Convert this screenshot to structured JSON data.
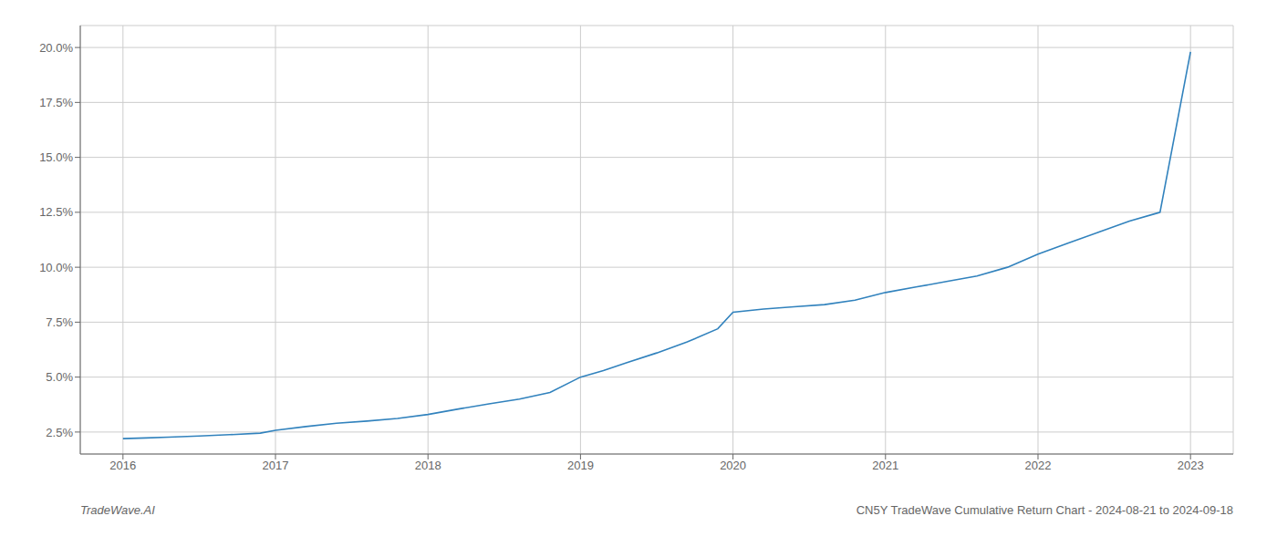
{
  "chart_data": {
    "type": "line",
    "x": [
      2016.0,
      2016.15,
      2016.3,
      2016.5,
      2016.7,
      2016.9,
      2017.0,
      2017.2,
      2017.4,
      2017.6,
      2017.8,
      2018.0,
      2018.2,
      2018.4,
      2018.6,
      2018.8,
      2019.0,
      2019.15,
      2019.3,
      2019.5,
      2019.7,
      2019.9,
      2020.0,
      2020.2,
      2020.4,
      2020.6,
      2020.8,
      2021.0,
      2021.2,
      2021.4,
      2021.6,
      2021.8,
      2022.0,
      2022.2,
      2022.4,
      2022.6,
      2022.8,
      2023.0
    ],
    "values": [
      2.2,
      2.23,
      2.27,
      2.32,
      2.38,
      2.45,
      2.58,
      2.75,
      2.9,
      3.0,
      3.12,
      3.3,
      3.55,
      3.78,
      4.0,
      4.3,
      5.0,
      5.3,
      5.65,
      6.1,
      6.6,
      7.2,
      7.95,
      8.1,
      8.2,
      8.3,
      8.5,
      8.85,
      9.1,
      9.35,
      9.6,
      10.0,
      10.6,
      11.1,
      11.6,
      12.1,
      12.5,
      19.8
    ],
    "xlim": [
      2015.72,
      2023.28
    ],
    "ylim": [
      1.5,
      21.0
    ],
    "xticks": [
      2016,
      2017,
      2018,
      2019,
      2020,
      2021,
      2022,
      2023
    ],
    "yticks": [
      {
        "value": 2.5,
        "label": "2.5%"
      },
      {
        "value": 5.0,
        "label": "5.0%"
      },
      {
        "value": 7.5,
        "label": "7.5%"
      },
      {
        "value": 10.0,
        "label": "10.0%"
      },
      {
        "value": 12.5,
        "label": "12.5%"
      },
      {
        "value": 15.0,
        "label": "15.0%"
      },
      {
        "value": 17.5,
        "label": "17.5%"
      },
      {
        "value": 20.0,
        "label": "20.0%"
      }
    ],
    "grid": true,
    "annotations": [
      "TradeWave.AI",
      "CN5Y TradeWave Cumulative Return Chart - 2024-08-21 to 2024-09-18"
    ]
  }
}
